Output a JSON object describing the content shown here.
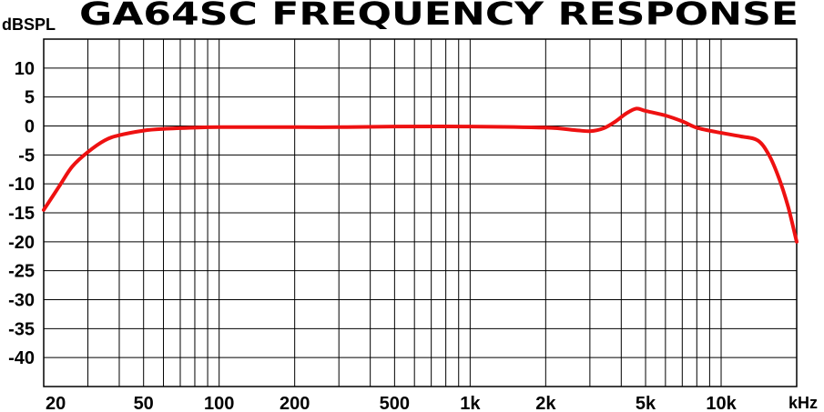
{
  "chart_data": {
    "type": "line",
    "title": "GA64SC FREQUENCY RESPONSE",
    "ylabel": "dBSPL",
    "xlabel": "kHz",
    "x_scale": "log",
    "xlim": [
      20,
      20000
    ],
    "ylim": [
      -45,
      15
    ],
    "grid": true,
    "y_ticks": [
      10,
      5,
      0,
      -5,
      -10,
      -15,
      -20,
      -25,
      -30,
      -35,
      -40
    ],
    "x_ticks": [
      {
        "value": 20,
        "label": "20"
      },
      {
        "value": 50,
        "label": "50"
      },
      {
        "value": 100,
        "label": "100"
      },
      {
        "value": 200,
        "label": "200"
      },
      {
        "value": 500,
        "label": "500"
      },
      {
        "value": 1000,
        "label": "1k"
      },
      {
        "value": 2000,
        "label": "2k"
      },
      {
        "value": 5000,
        "label": "5k"
      },
      {
        "value": 10000,
        "label": "10k"
      }
    ],
    "series": [
      {
        "color": "#ee1111",
        "points": [
          [
            20,
            -14.5
          ],
          [
            23,
            -10.5
          ],
          [
            26,
            -7.0
          ],
          [
            30,
            -4.5
          ],
          [
            35,
            -2.5
          ],
          [
            40,
            -1.6
          ],
          [
            50,
            -0.8
          ],
          [
            60,
            -0.5
          ],
          [
            80,
            -0.3
          ],
          [
            100,
            -0.2
          ],
          [
            200,
            -0.2
          ],
          [
            300,
            -0.2
          ],
          [
            500,
            -0.1
          ],
          [
            1000,
            -0.1
          ],
          [
            2000,
            -0.3
          ],
          [
            2600,
            -0.7
          ],
          [
            3000,
            -0.9
          ],
          [
            3400,
            -0.4
          ],
          [
            3800,
            0.8
          ],
          [
            4200,
            2.2
          ],
          [
            4600,
            3.0
          ],
          [
            5000,
            2.6
          ],
          [
            6000,
            1.8
          ],
          [
            7000,
            0.8
          ],
          [
            8000,
            -0.3
          ],
          [
            10000,
            -1.2
          ],
          [
            12000,
            -1.8
          ],
          [
            14000,
            -2.5
          ],
          [
            15500,
            -5.0
          ],
          [
            17000,
            -9.0
          ],
          [
            18500,
            -14.0
          ],
          [
            20000,
            -20.0
          ]
        ]
      }
    ]
  }
}
